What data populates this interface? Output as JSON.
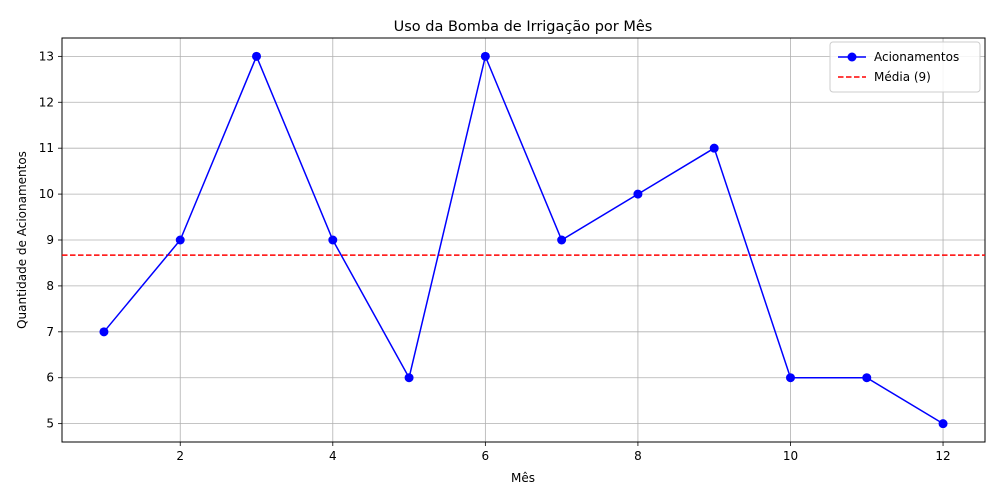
{
  "chart_data": {
    "type": "line",
    "title": "Uso da Bomba de Irrigação por Mês",
    "xlabel": "Mês",
    "ylabel": "Quantidade de Acionamentos",
    "x": [
      1,
      2,
      3,
      4,
      5,
      6,
      7,
      8,
      9,
      10,
      11,
      12
    ],
    "series": [
      {
        "name": "Acionamentos",
        "values": [
          7,
          9,
          13,
          9,
          6,
          13,
          9,
          10,
          11,
          6,
          6,
          5
        ],
        "color": "#0000ff",
        "marker": "circle"
      }
    ],
    "reference_lines": [
      {
        "name": "Média (9)",
        "value": 8.67,
        "color": "#ff0000",
        "style": "dashed"
      }
    ],
    "xlim": [
      0.45,
      12.55
    ],
    "ylim": [
      4.6,
      13.4
    ],
    "xticks": [
      2,
      4,
      6,
      8,
      10,
      12
    ],
    "yticks": [
      5,
      6,
      7,
      8,
      9,
      10,
      11,
      12,
      13
    ],
    "grid": true,
    "legend_position": "top-right"
  }
}
